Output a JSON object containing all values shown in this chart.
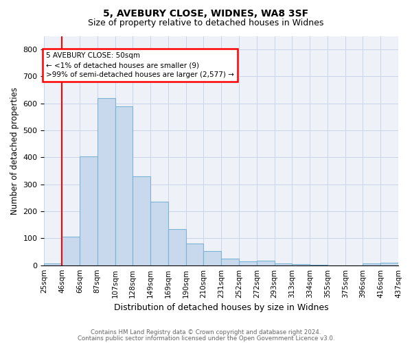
{
  "title1": "5, AVEBURY CLOSE, WIDNES, WA8 3SF",
  "title2": "Size of property relative to detached houses in Widnes",
  "xlabel": "Distribution of detached houses by size in Widnes",
  "ylabel": "Number of detached properties",
  "bin_labels": [
    "25sqm",
    "46sqm",
    "66sqm",
    "87sqm",
    "107sqm",
    "128sqm",
    "149sqm",
    "169sqm",
    "190sqm",
    "210sqm",
    "231sqm",
    "252sqm",
    "272sqm",
    "293sqm",
    "313sqm",
    "334sqm",
    "355sqm",
    "375sqm",
    "396sqm",
    "416sqm",
    "437sqm"
  ],
  "bar_heights": [
    8,
    107,
    403,
    620,
    590,
    330,
    237,
    135,
    80,
    52,
    24,
    15,
    18,
    8,
    5,
    3,
    0,
    0,
    8,
    10
  ],
  "bar_color": "#c9d9ed",
  "bar_edge_color": "#7ab4d4",
  "annotation_line1": "5 AVEBURY CLOSE: 50sqm",
  "annotation_line2": "← <1% of detached houses are smaller (9)",
  "annotation_line3": ">99% of semi-detached houses are larger (2,577) →",
  "annotation_box_color": "white",
  "annotation_box_edge_color": "red",
  "subject_bar_index": 1,
  "ylim": [
    0,
    850
  ],
  "yticks": [
    0,
    100,
    200,
    300,
    400,
    500,
    600,
    700,
    800
  ],
  "footer1": "Contains HM Land Registry data © Crown copyright and database right 2024.",
  "footer2": "Contains public sector information licensed under the Open Government Licence v3.0.",
  "bg_color": "#eef2f8",
  "grid_color": "#c8d4e8",
  "title1_fontsize": 10,
  "title2_fontsize": 9
}
